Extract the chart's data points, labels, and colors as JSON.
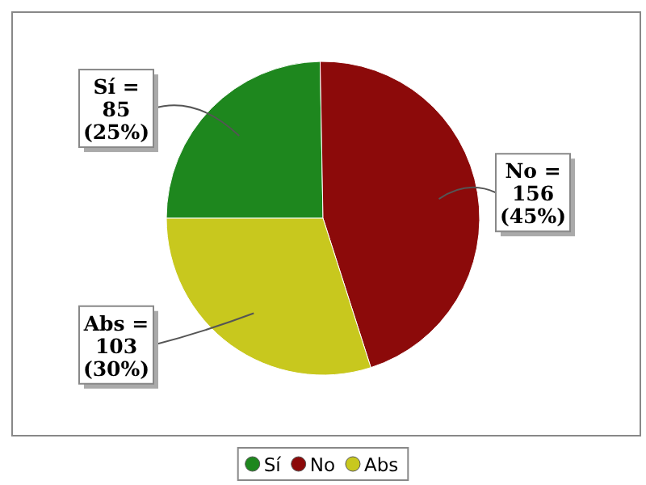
{
  "chart_data": {
    "type": "pie",
    "categories": [
      "Sí",
      "No",
      "Abs"
    ],
    "values": [
      85,
      156,
      103
    ],
    "colors": [
      "#1e871e",
      "#8c0a0a",
      "#c8c81e"
    ],
    "value_labels": [
      "Sí =\n85\n(25%)",
      "No =\n156\n(45%)",
      "Abs =\n103\n(30%)"
    ],
    "legend": "bottom"
  }
}
